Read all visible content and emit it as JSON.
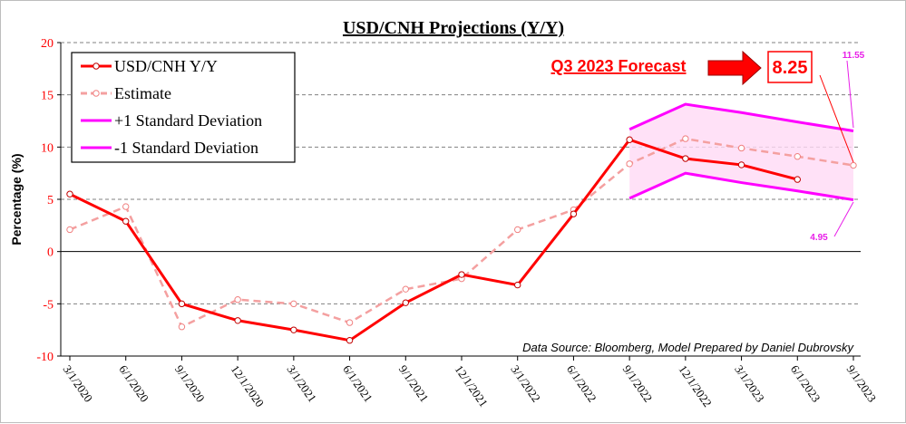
{
  "chart_data": {
    "type": "line",
    "title": "USD/CNH Projections (Y/Y)",
    "ylabel": "Percentage (%)",
    "ylim": [
      -10,
      20
    ],
    "yticks": [
      -10,
      -5,
      0,
      5,
      10,
      15,
      20
    ],
    "categories": [
      "3/1/2020",
      "6/1/2020",
      "9/1/2020",
      "12/1/2020",
      "3/1/2021",
      "6/1/2021",
      "9/1/2021",
      "12/1/2021",
      "3/1/2022",
      "6/1/2022",
      "9/1/2022",
      "12/1/2022",
      "3/1/2023",
      "6/1/2023",
      "9/1/2023"
    ],
    "grid": "horizontal dashed",
    "legend_position": "top-left",
    "series": [
      {
        "name": "USD/CNH Y/Y",
        "color": "#ff0000",
        "style": "solid",
        "values": [
          5.5,
          2.9,
          -5.0,
          -6.6,
          -7.5,
          -8.5,
          -4.9,
          -2.2,
          -3.2,
          3.6,
          10.7,
          8.9,
          8.3,
          6.9,
          null
        ]
      },
      {
        "name": "Estimate",
        "color": "#f4a0a0",
        "style": "dashed",
        "values": [
          2.1,
          4.3,
          -7.2,
          -4.6,
          -5.0,
          -6.8,
          -3.6,
          -2.6,
          2.1,
          4.0,
          8.4,
          10.8,
          9.9,
          9.1,
          8.25
        ]
      },
      {
        "name": "+1 Standard Deviation",
        "color": "#ff00ff",
        "style": "solid",
        "values": [
          null,
          null,
          null,
          null,
          null,
          null,
          null,
          null,
          null,
          null,
          11.7,
          14.1,
          13.3,
          12.4,
          11.55
        ]
      },
      {
        "name": "-1 Standard Deviation",
        "color": "#ff00ff",
        "style": "solid",
        "values": [
          null,
          null,
          null,
          null,
          null,
          null,
          null,
          null,
          null,
          null,
          5.1,
          7.5,
          6.6,
          5.8,
          4.95
        ]
      }
    ],
    "annotations": {
      "source": "Data Source: Bloomberg, Model Prepared by Daniel Dubrovsky",
      "forecast_label": "Q3 2023 Forecast",
      "forecast_value": "8.25",
      "upper_value": "11.55",
      "lower_value": "4.95"
    }
  }
}
